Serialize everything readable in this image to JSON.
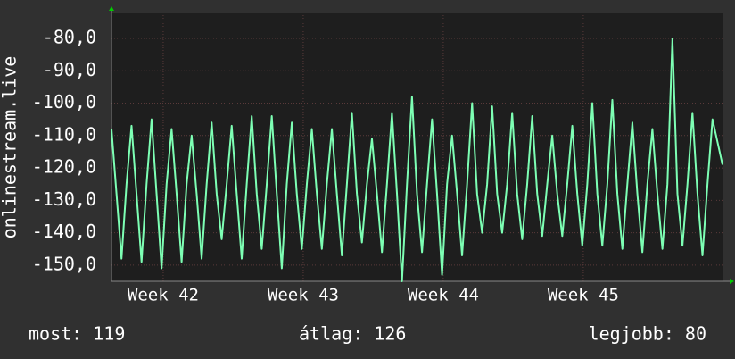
{
  "chart_data": {
    "type": "line",
    "y_label": "onlinestream.live",
    "stats": [
      "most: 119",
      "átlag: 126",
      "legjobb: 80"
    ],
    "x": [
      0,
      0.25,
      0.5,
      0.75,
      1,
      1.25,
      1.5,
      1.75,
      2,
      2.25,
      2.5,
      2.75,
      3,
      3.25,
      3.5,
      3.75,
      4,
      4.25,
      4.5,
      4.75,
      5,
      5.25,
      5.5,
      5.75,
      6,
      6.25,
      6.5,
      6.75,
      7,
      7.25,
      7.5,
      7.75,
      8,
      8.25,
      8.5,
      8.75,
      9,
      9.25,
      9.5,
      9.75,
      10,
      10.25,
      10.5,
      10.75,
      11,
      11.25,
      11.5,
      11.75,
      12,
      12.25,
      12.5,
      12.75,
      13,
      13.25,
      13.5,
      13.75,
      14,
      14.25,
      14.5,
      14.75,
      15,
      15.25,
      15.5,
      15.75,
      16,
      16.25,
      16.5,
      16.75,
      17,
      17.25,
      17.5,
      17.75,
      18,
      18.25,
      18.5,
      18.75,
      19,
      19.25,
      19.5,
      19.75,
      20,
      20.25,
      20.5,
      20.75,
      21,
      21.25,
      21.5,
      21.75,
      22,
      22.25,
      22.5,
      22.75,
      23,
      23.25,
      23.5,
      23.75,
      24,
      24.25,
      24.5,
      24.75,
      25,
      25.25,
      25.5,
      25.75,
      26,
      26.25,
      26.5,
      26.75,
      27,
      27.25,
      27.5,
      27.75,
      28,
      28.25,
      28.5,
      28.75,
      29,
      29.25,
      29.5,
      29.75,
      30,
      30.25,
      30.5
    ],
    "series": [
      {
        "name": "onlinestream.live",
        "color": "#7dffb4",
        "values": [
          -108,
          -128,
          -148,
          -125,
          -107,
          -128,
          -149,
          -125,
          -105,
          -128,
          -151,
          -125,
          -108,
          -128,
          -149,
          -125,
          -110,
          -128,
          -148,
          -125,
          -106,
          -128,
          -142,
          -125,
          -107,
          -128,
          -148,
          -125,
          -104,
          -128,
          -145,
          -125,
          -104,
          -128,
          -151,
          -125,
          -106,
          -128,
          -145,
          -125,
          -108,
          -128,
          -145,
          -125,
          -108,
          -128,
          -147,
          -125,
          -103,
          -128,
          -143,
          -125,
          -111,
          -128,
          -146,
          -125,
          -103,
          -128,
          -155,
          -125,
          -98,
          -128,
          -146,
          -125,
          -105,
          -128,
          -153,
          -125,
          -110,
          -128,
          -147,
          -125,
          -100,
          -128,
          -140,
          -125,
          -101,
          -128,
          -140,
          -125,
          -103,
          -128,
          -142,
          -125,
          -104,
          -128,
          -141,
          -125,
          -110,
          -128,
          -141,
          -125,
          -107,
          -128,
          -144,
          -125,
          -100,
          -128,
          -144,
          -125,
          -99,
          -128,
          -145,
          -125,
          -106,
          -128,
          -146,
          -125,
          -108,
          -128,
          -145,
          -125,
          -80,
          -128,
          -144,
          -125,
          -103,
          -128,
          -147,
          -125,
          -105,
          -112,
          -119
        ]
      }
    ],
    "xlim": [
      0,
      30.5
    ],
    "ylim": [
      -155,
      -72
    ],
    "xticks": [
      {
        "value": 2.58,
        "label": "Week 42"
      },
      {
        "value": 9.57,
        "label": "Week 43"
      },
      {
        "value": 16.56,
        "label": "Week 44"
      },
      {
        "value": 23.55,
        "label": "Week 45"
      }
    ],
    "yticks": [
      {
        "value": -80,
        "label": "-80,0"
      },
      {
        "value": -90,
        "label": "-90,0"
      },
      {
        "value": -100,
        "label": "-100,0"
      },
      {
        "value": -110,
        "label": "-110,0"
      },
      {
        "value": -120,
        "label": "-120,0"
      },
      {
        "value": -130,
        "label": "-130,0"
      },
      {
        "value": -140,
        "label": "-140,0"
      },
      {
        "value": -150,
        "label": "-150,0"
      }
    ],
    "grid": true
  }
}
